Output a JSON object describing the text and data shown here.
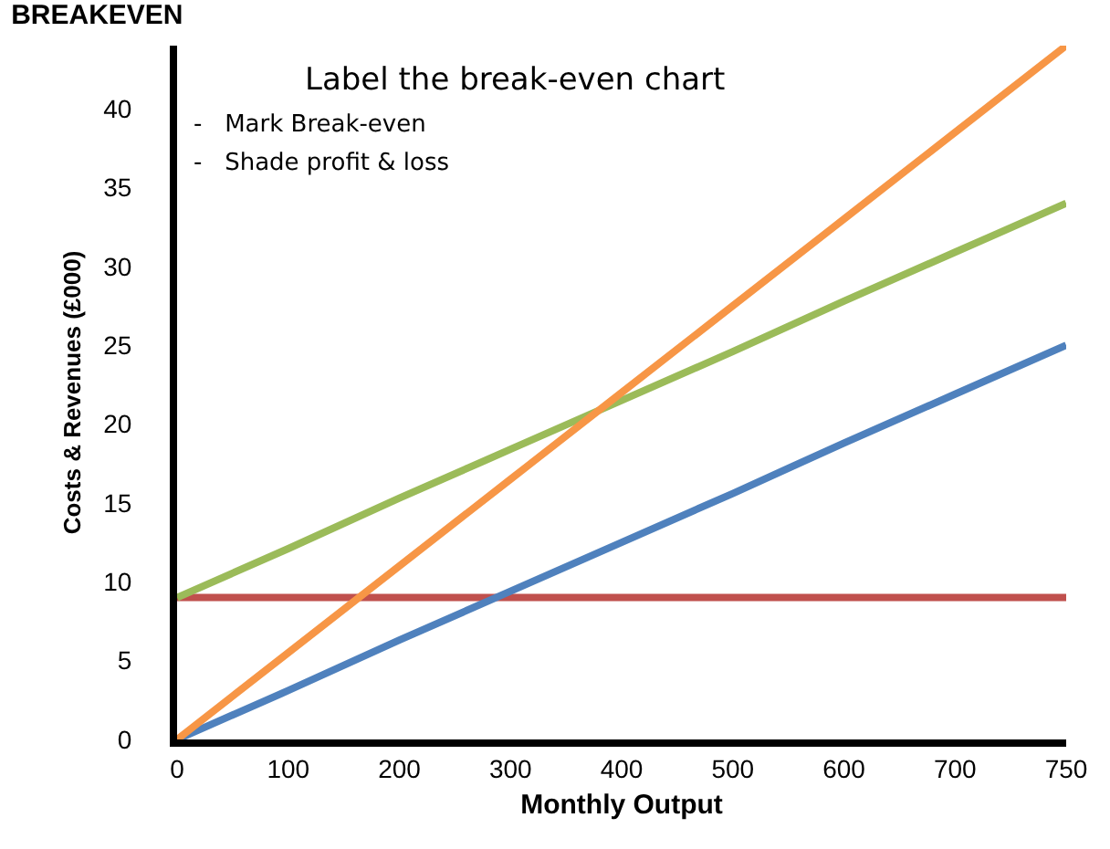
{
  "chart_data": {
    "type": "line",
    "title": "BREAKEVEN",
    "xlabel": "Monthly Output",
    "ylabel": "Costs & Revenues (£000)",
    "categories": [
      "0",
      "100",
      "200",
      "300",
      "400",
      "500",
      "600",
      "700",
      "750"
    ],
    "series": [
      {
        "color": "#c0504d",
        "values": [
          9,
          9,
          9,
          9,
          9,
          9,
          9,
          9,
          9
        ]
      },
      {
        "color": "#4f81bd",
        "values": [
          0,
          3.1,
          6.3,
          9.4,
          12.5,
          15.6,
          18.8,
          21.9,
          25
        ]
      },
      {
        "color": "#9bbb59",
        "values": [
          9,
          12.1,
          15.3,
          18.4,
          21.5,
          24.6,
          27.8,
          30.9,
          34
        ]
      },
      {
        "color": "#f79646",
        "values": [
          0,
          5.5,
          11,
          16.5,
          22,
          27.5,
          33,
          38.5,
          44
        ]
      }
    ],
    "ylim": [
      0,
      44
    ],
    "yticks": [
      0,
      5,
      10,
      15,
      20,
      25,
      30,
      35,
      40
    ],
    "grid": false,
    "marker": "none",
    "line_style": "solid",
    "annotations": [
      "Label the break-even chart",
      "-   Mark Break-even",
      "-   Shade profit & loss"
    ]
  }
}
